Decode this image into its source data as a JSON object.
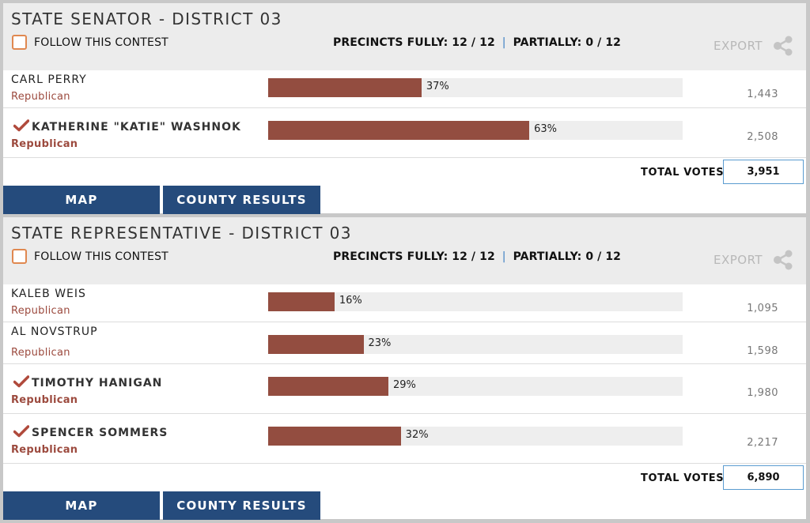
{
  "contests": [
    {
      "title": "STATE SENATOR - DISTRICT 03",
      "follow_label": "FOLLOW THIS CONTEST",
      "precincts_fully": "PRECINCTS FULLY: 12 / 12",
      "precincts_sep": "|",
      "precincts_partially": "PARTIALLY: 0 / 12",
      "export_label": "EXPORT",
      "candidates": [
        {
          "name": "CARL PERRY",
          "party": "Republican",
          "percent": 37,
          "percent_label": "37%",
          "votes": "1,443",
          "winner": false
        },
        {
          "name": "KATHERINE \"KATIE\" WASHNOK",
          "party": "Republican",
          "percent": 63,
          "percent_label": "63%",
          "votes": "2,508",
          "winner": true
        }
      ],
      "total_label": "TOTAL VOTES",
      "total_votes": "3,951",
      "map_label": "MAP",
      "county_label": "COUNTY RESULTS"
    },
    {
      "title": "STATE REPRESENTATIVE - DISTRICT 03",
      "follow_label": "FOLLOW THIS CONTEST",
      "precincts_fully": "PRECINCTS FULLY: 12 / 12",
      "precincts_sep": "|",
      "precincts_partially": "PARTIALLY: 0 / 12",
      "export_label": "EXPORT",
      "candidates": [
        {
          "name": "KALEB WEIS",
          "party": "Republican",
          "percent": 16,
          "percent_label": "16%",
          "votes": "1,095",
          "winner": false
        },
        {
          "name": "AL NOVSTRUP",
          "party": "Republican",
          "percent": 23,
          "percent_label": "23%",
          "votes": "1,598",
          "winner": false
        },
        {
          "name": "TIMOTHY HANIGAN",
          "party": "Republican",
          "percent": 29,
          "percent_label": "29%",
          "votes": "1,980",
          "winner": true
        },
        {
          "name": "SPENCER SOMMERS",
          "party": "Republican",
          "percent": 32,
          "percent_label": "32%",
          "votes": "2,217",
          "winner": true
        }
      ],
      "total_label": "TOTAL VOTES",
      "total_votes": "6,890",
      "map_label": "MAP",
      "county_label": "COUNTY RESULTS"
    }
  ],
  "colors": {
    "bar_fill": "#934d40",
    "bar_track": "#eeeeee",
    "party_text": "#9c4a3e",
    "button_bg": "#254b7c",
    "checkbox_border": "#e08850",
    "separator": "#3b7fc4",
    "total_border": "#5a9bd0"
  },
  "icons": {
    "follow": "checkbox-icon",
    "export": "share-icon",
    "winner": "checkmark-icon"
  }
}
